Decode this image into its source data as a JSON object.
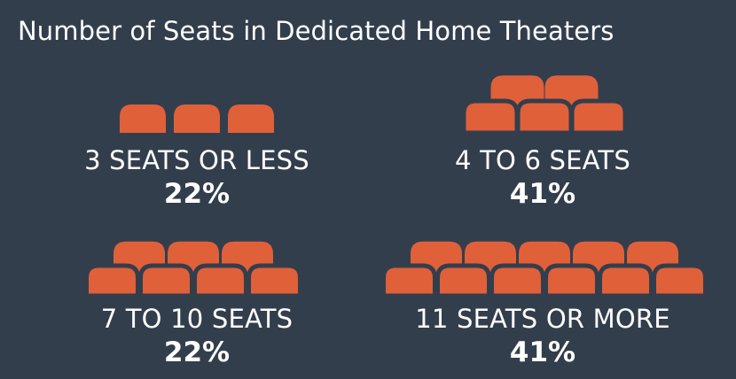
{
  "title": "Number of Seats in Dedicated Home Theaters",
  "colors": {
    "background": "#333e4d",
    "seat": "#e0603a",
    "text": "#ffffff"
  },
  "chart_data": {
    "type": "pictograph",
    "title": "Number of Seats in Dedicated Home Theaters",
    "icon": "theater-seat-icon",
    "categories": [
      {
        "label": "3 SEATS OR LESS",
        "value_text": "22%",
        "value": 22,
        "seats": 3
      },
      {
        "label": "4 TO 6 SEATS",
        "value_text": "41%",
        "value": 41,
        "seats": 5
      },
      {
        "label": "7 TO 10 SEATS",
        "value_text": "22%",
        "value": 22,
        "seats": 7
      },
      {
        "label": "11 SEATS OR MORE",
        "value_text": "41%",
        "value": 41,
        "seats": 11
      }
    ]
  }
}
